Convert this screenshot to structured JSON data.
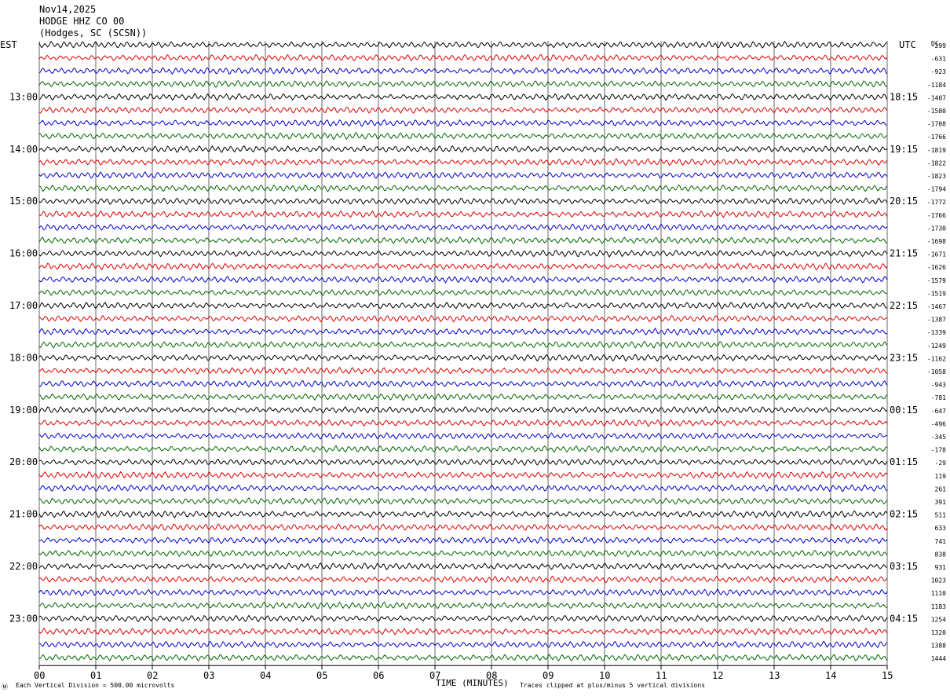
{
  "header": {
    "date": "Nov14,2025",
    "station": "HODGE HHZ CO 00",
    "location": "(Hodges, SC (SCSN))"
  },
  "left_zone": "EST",
  "right_zone": "UTC",
  "dc_label": "DC",
  "footer": {
    "left_mark": "Ⓜ",
    "division": "Each Vertical Division =  500.00 microvolts",
    "clip": "Traces clipped at plus/minus 5 vertical divisions"
  },
  "colors": {
    "cycle": [
      "#000000",
      "#e00000",
      "#0000cc",
      "#006600"
    ],
    "grid": "#000000"
  },
  "chart_data": {
    "type": "line",
    "xlabel": "TIME (MINUTES)",
    "xlim": [
      0,
      15
    ],
    "x_ticks": [
      "00",
      "01",
      "02",
      "03",
      "04",
      "05",
      "06",
      "07",
      "08",
      "09",
      "10",
      "11",
      "12",
      "13",
      "14",
      "15"
    ],
    "trace_count": 48,
    "left_hour_labels": [
      {
        "trace": 4,
        "text": "13:00"
      },
      {
        "trace": 8,
        "text": "14:00"
      },
      {
        "trace": 12,
        "text": "15:00"
      },
      {
        "trace": 16,
        "text": "16:00"
      },
      {
        "trace": 20,
        "text": "17:00"
      },
      {
        "trace": 24,
        "text": "18:00"
      },
      {
        "trace": 28,
        "text": "19:00"
      },
      {
        "trace": 32,
        "text": "20:00"
      },
      {
        "trace": 36,
        "text": "21:00"
      },
      {
        "trace": 40,
        "text": "22:00"
      },
      {
        "trace": 44,
        "text": "23:00"
      }
    ],
    "right_hour_labels": [
      {
        "trace": 4,
        "text": "18:15"
      },
      {
        "trace": 8,
        "text": "19:15"
      },
      {
        "trace": 12,
        "text": "20:15"
      },
      {
        "trace": 16,
        "text": "21:15"
      },
      {
        "trace": 20,
        "text": "22:15"
      },
      {
        "trace": 24,
        "text": "23:15"
      },
      {
        "trace": 28,
        "text": "00:15"
      },
      {
        "trace": 32,
        "text": "01:15"
      },
      {
        "trace": 36,
        "text": "02:15"
      },
      {
        "trace": 40,
        "text": "03:15"
      },
      {
        "trace": 44,
        "text": "04:15"
      }
    ],
    "dc_offsets": [
      "-299",
      "-631",
      "-923",
      "-1184",
      "-1407",
      "-1580",
      "-1708",
      "-1766",
      "-1819",
      "-1822",
      "-1823",
      "-1794",
      "-1772",
      "-1766",
      "-1730",
      "-1698",
      "-1671",
      "-1626",
      "-1579",
      "-1519",
      "-1467",
      "-1387",
      "-1339",
      "-1249",
      "-1162",
      "-1058",
      "-943",
      "-781",
      "-647",
      "-496",
      "-345",
      "-178",
      "-29",
      "119",
      "261",
      "391",
      "511",
      "633",
      "741",
      "838",
      "931",
      "1023",
      "1110",
      "1183",
      "1254",
      "1320",
      "1388",
      "1444"
    ]
  }
}
